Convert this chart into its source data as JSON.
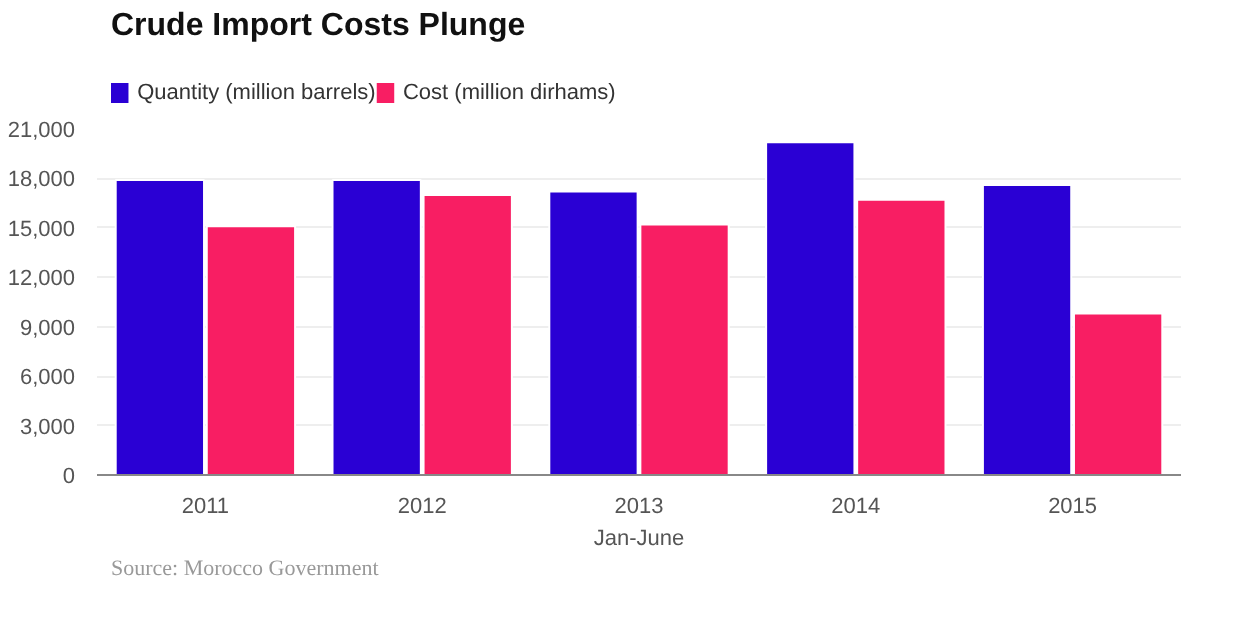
{
  "chart_data": {
    "type": "bar",
    "title": "Crude Import Costs Plunge",
    "xlabel": "Jan-June",
    "categories": [
      "2011",
      "2012",
      "2013",
      "2014",
      "2015"
    ],
    "series": [
      {
        "name": "Quantity (million barrels)",
        "color": "#2a00d4",
        "values": [
          17900,
          17900,
          17200,
          20200,
          17600
        ]
      },
      {
        "name": "Cost (million dirhams)",
        "color": "#f81e63",
        "values": [
          15100,
          17000,
          15200,
          16700,
          9800
        ]
      }
    ],
    "ylim": [
      0,
      21000
    ],
    "yticks": [
      {
        "value": 0,
        "label": "0"
      },
      {
        "value": 3000,
        "label": "3,000"
      },
      {
        "value": 6000,
        "label": "6,000"
      },
      {
        "value": 9000,
        "label": "9,000"
      },
      {
        "value": 12000,
        "label": "12,000"
      },
      {
        "value": 15000,
        "label": "15,000"
      },
      {
        "value": 18000,
        "label": "18,000"
      },
      {
        "value": 21000,
        "label": "21,000"
      }
    ],
    "grid": "y",
    "legend": "top left",
    "annotations": [
      "Source: Morocco Government"
    ]
  }
}
